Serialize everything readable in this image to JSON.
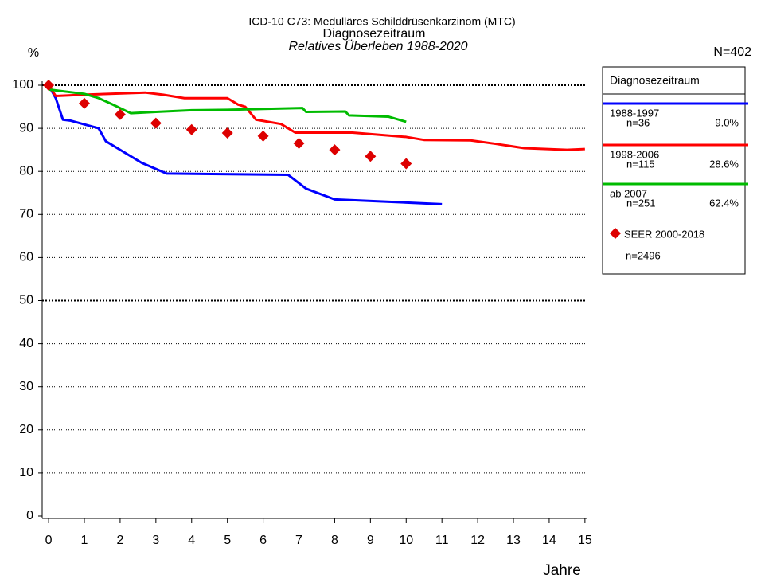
{
  "chart_data": {
    "type": "line",
    "title": "ICD-10 C73: Medulläres Schilddrüsenkarzinom (MTC)",
    "subtitle": "Diagnosezeitraum",
    "subtitle2": "Relatives Überleben 1988-2020",
    "y_label": "%",
    "x_label": "Jahre",
    "total": "N=402",
    "legend_title": "Diagnosezeitraum",
    "xlim": [
      -0.18,
      15.07
    ],
    "xticks": [
      0,
      1,
      2,
      3,
      4,
      5,
      6,
      7,
      8,
      9,
      10,
      11,
      12,
      13,
      14,
      15
    ],
    "ylim": [
      0,
      100
    ],
    "yticks": [
      0,
      10,
      20,
      30,
      40,
      50,
      60,
      70,
      80,
      90,
      100
    ],
    "bold_grid": [
      50,
      100
    ],
    "grid": true,
    "series": [
      {
        "name": "1988-1997",
        "n": "n=36",
        "share": "9.0%",
        "color": "#0000ff",
        "x": [
          0,
          0.2,
          0.4,
          0.6,
          1.4,
          1.6,
          2,
          2.6,
          3.3,
          6.7,
          7.2,
          8,
          11
        ],
        "values": [
          100,
          97,
          92,
          91.8,
          90,
          87,
          85,
          82,
          79.5,
          79.2,
          76,
          73.5,
          72.4
        ]
      },
      {
        "name": "1998-2006",
        "n": "n=115",
        "share": "28.6%",
        "color": "#ff0000",
        "x": [
          0,
          0.2,
          1,
          2.7,
          3.2,
          3.8,
          5,
          5.3,
          5.5,
          5.8,
          6.5,
          6.9,
          8.5,
          10,
          10.5,
          11.8,
          12.5,
          13.3,
          14.5,
          15
        ],
        "values": [
          100,
          97.5,
          97.8,
          98.3,
          97.8,
          97,
          97,
          95.5,
          95,
          92,
          91,
          89,
          89,
          88,
          87.3,
          87.2,
          86.4,
          85.4,
          85,
          85.2
        ]
      },
      {
        "name": "ab 2007",
        "n": "n=251",
        "share": "62.4%",
        "color": "#00bb00",
        "x": [
          0,
          1,
          1.4,
          1.8,
          2.3,
          3,
          4,
          5,
          6,
          7.1,
          7.2,
          8.3,
          8.4,
          9.5,
          10
        ],
        "values": [
          99,
          98,
          97,
          95.5,
          93.5,
          93.8,
          94.2,
          94.3,
          94.5,
          94.7,
          93.8,
          93.9,
          93,
          92.7,
          91.5
        ]
      },
      {
        "name": "SEER 2000-2018",
        "n": "n=2496",
        "color": "#dd0000",
        "marker": "diamond",
        "x": [
          0,
          1,
          2,
          3,
          4,
          5,
          6,
          7,
          8,
          9,
          10
        ],
        "values": [
          100,
          95.8,
          93.2,
          91.2,
          89.7,
          88.9,
          88.2,
          86.5,
          85,
          83.5,
          81.8
        ]
      }
    ]
  }
}
